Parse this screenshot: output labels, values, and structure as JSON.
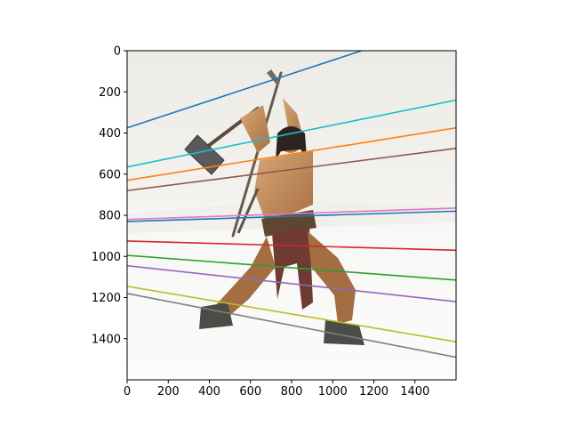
{
  "chart_data": {
    "type": "line",
    "background": "image",
    "image_subject": "barbarian-warrior-figurine-icon",
    "xlim": [
      0,
      1600
    ],
    "ylim": [
      1600,
      0
    ],
    "y_inverted": true,
    "grid": false,
    "xticks": [
      "0",
      "200",
      "400",
      "600",
      "800",
      "1000",
      "1200",
      "1400"
    ],
    "yticks": [
      "0",
      "200",
      "400",
      "600",
      "800",
      "1000",
      "1200",
      "1400"
    ],
    "series": [
      {
        "color": "#1f77b4",
        "x": [
          0,
          1140
        ],
        "y": [
          375,
          0
        ]
      },
      {
        "color": "#17becf",
        "x": [
          0,
          1600
        ],
        "y": [
          565,
          240
        ]
      },
      {
        "color": "#ff7f0e",
        "x": [
          0,
          1600
        ],
        "y": [
          630,
          375
        ]
      },
      {
        "color": "#8c564b",
        "x": [
          0,
          1600
        ],
        "y": [
          680,
          475
        ]
      },
      {
        "color": "#e377c2",
        "x": [
          0,
          1600
        ],
        "y": [
          820,
          765
        ]
      },
      {
        "color": "#1f77b4",
        "x": [
          0,
          1600
        ],
        "y": [
          830,
          780
        ]
      },
      {
        "color": "#d62728",
        "x": [
          0,
          1600
        ],
        "y": [
          925,
          970
        ]
      },
      {
        "color": "#2ca02c",
        "x": [
          0,
          1600
        ],
        "y": [
          995,
          1115
        ]
      },
      {
        "color": "#9467bd",
        "x": [
          0,
          1600
        ],
        "y": [
          1045,
          1220
        ]
      },
      {
        "color": "#bcbd22",
        "x": [
          0,
          1600
        ],
        "y": [
          1145,
          1415
        ]
      },
      {
        "color": "#7f7f7f",
        "x": [
          0,
          1600
        ],
        "y": [
          1180,
          1490
        ]
      }
    ]
  }
}
